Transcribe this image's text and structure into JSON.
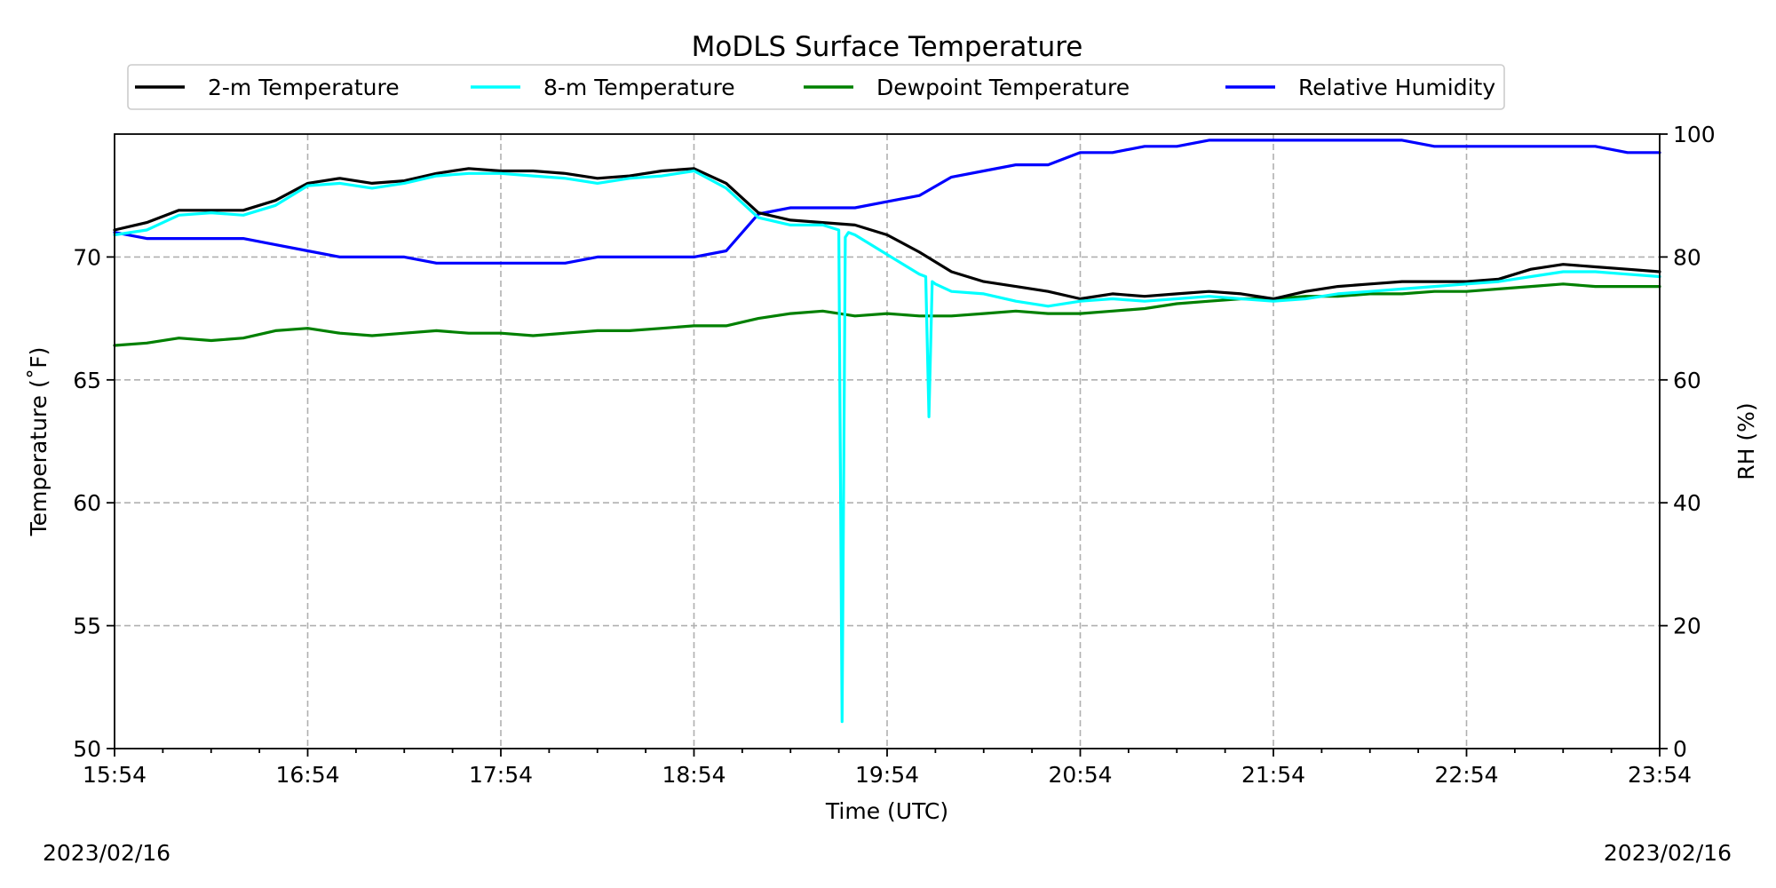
{
  "chart_data": {
    "type": "line",
    "title": "MoDLS Surface Temperature",
    "xlabel": "Time (UTC)",
    "ylabel": "Temperature (˚F)",
    "y2label": "RH (%)",
    "date_left": "2023/02/16",
    "date_right": "2023/02/16",
    "x_ticks": [
      "15:54",
      "16:54",
      "17:54",
      "18:54",
      "19:54",
      "20:54",
      "21:54",
      "22:54",
      "23:54"
    ],
    "x_range_minutes": [
      0,
      480
    ],
    "ylim": [
      50,
      75
    ],
    "y_ticks": [
      50,
      55,
      60,
      65,
      70
    ],
    "y2lim": [
      0,
      100
    ],
    "y2_ticks": [
      0,
      20,
      40,
      60,
      80,
      100
    ],
    "grid": true,
    "legend": "top",
    "series": [
      {
        "name": "2-m Temperature",
        "color": "#000000",
        "axis": "left",
        "x": [
          0,
          10,
          20,
          30,
          40,
          50,
          60,
          70,
          80,
          90,
          100,
          110,
          120,
          130,
          140,
          150,
          160,
          170,
          180,
          190,
          200,
          210,
          220,
          230,
          240,
          250,
          260,
          270,
          280,
          290,
          300,
          310,
          320,
          330,
          340,
          350,
          360,
          370,
          380,
          390,
          400,
          410,
          420,
          430,
          440,
          450,
          460,
          470,
          480
        ],
        "values": [
          71.1,
          71.4,
          71.9,
          71.9,
          71.9,
          72.3,
          73.0,
          73.2,
          73.0,
          73.1,
          73.4,
          73.6,
          73.5,
          73.5,
          73.4,
          73.2,
          73.3,
          73.5,
          73.6,
          73.0,
          71.8,
          71.5,
          71.4,
          71.3,
          70.9,
          70.2,
          69.4,
          69.0,
          68.8,
          68.6,
          68.3,
          68.5,
          68.4,
          68.5,
          68.6,
          68.5,
          68.3,
          68.6,
          68.8,
          68.9,
          69.0,
          69.0,
          69.0,
          69.1,
          69.5,
          69.7,
          69.6,
          69.5,
          69.4
        ]
      },
      {
        "name": "8-m Temperature",
        "color": "#00ffff",
        "axis": "left",
        "x": [
          0,
          10,
          20,
          30,
          40,
          50,
          60,
          70,
          80,
          90,
          100,
          110,
          120,
          130,
          140,
          150,
          160,
          170,
          180,
          190,
          200,
          210,
          220,
          225,
          226,
          227,
          228,
          230,
          240,
          250,
          252,
          253,
          254,
          255,
          260,
          270,
          280,
          290,
          300,
          310,
          320,
          330,
          340,
          350,
          360,
          370,
          380,
          390,
          400,
          410,
          420,
          430,
          440,
          450,
          460,
          470,
          480
        ],
        "values": [
          70.9,
          71.1,
          71.7,
          71.8,
          71.7,
          72.1,
          72.9,
          73.0,
          72.8,
          73.0,
          73.3,
          73.4,
          73.4,
          73.3,
          73.2,
          73.0,
          73.2,
          73.3,
          73.5,
          72.8,
          71.6,
          71.3,
          71.3,
          71.1,
          51.1,
          70.8,
          71.0,
          70.9,
          70.1,
          69.3,
          69.2,
          63.5,
          69.0,
          68.9,
          68.6,
          68.5,
          68.2,
          68.0,
          68.2,
          68.3,
          68.2,
          68.3,
          68.4,
          68.3,
          68.2,
          68.3,
          68.5,
          68.6,
          68.7,
          68.8,
          68.9,
          69.0,
          69.2,
          69.4,
          69.4,
          69.3,
          69.2
        ]
      },
      {
        "name": "Dewpoint Temperature",
        "color": "#008000",
        "axis": "left",
        "x": [
          0,
          10,
          20,
          30,
          40,
          50,
          60,
          70,
          80,
          90,
          100,
          110,
          120,
          130,
          140,
          150,
          160,
          170,
          180,
          190,
          200,
          210,
          220,
          230,
          240,
          250,
          260,
          270,
          280,
          290,
          300,
          310,
          320,
          330,
          340,
          350,
          360,
          370,
          380,
          390,
          400,
          410,
          420,
          430,
          440,
          450,
          460,
          470,
          480
        ],
        "values": [
          66.4,
          66.5,
          66.7,
          66.6,
          66.7,
          67.0,
          67.1,
          66.9,
          66.8,
          66.9,
          67.0,
          66.9,
          66.9,
          66.8,
          66.9,
          67.0,
          67.0,
          67.1,
          67.2,
          67.2,
          67.5,
          67.7,
          67.8,
          67.6,
          67.7,
          67.6,
          67.6,
          67.7,
          67.8,
          67.7,
          67.7,
          67.8,
          67.9,
          68.1,
          68.2,
          68.3,
          68.3,
          68.4,
          68.4,
          68.5,
          68.5,
          68.6,
          68.6,
          68.7,
          68.8,
          68.9,
          68.8,
          68.8,
          68.8
        ]
      },
      {
        "name": "Relative Humidity",
        "color": "#0000ff",
        "axis": "right",
        "x": [
          0,
          10,
          20,
          30,
          40,
          50,
          60,
          70,
          80,
          90,
          100,
          110,
          120,
          130,
          140,
          150,
          160,
          170,
          180,
          190,
          200,
          210,
          220,
          230,
          240,
          250,
          260,
          270,
          280,
          290,
          300,
          310,
          320,
          330,
          340,
          350,
          360,
          370,
          380,
          390,
          400,
          410,
          420,
          430,
          440,
          450,
          460,
          470,
          480
        ],
        "values": [
          84,
          83,
          83,
          83,
          83,
          82,
          81,
          80,
          80,
          80,
          79,
          79,
          79,
          79,
          79,
          80,
          80,
          80,
          80,
          81,
          87,
          88,
          88,
          88,
          89,
          90,
          93,
          94,
          95,
          95,
          97,
          97,
          98,
          98,
          99,
          99,
          99,
          99,
          99,
          99,
          99,
          98,
          98,
          98,
          98,
          98,
          98,
          97,
          97
        ]
      }
    ]
  }
}
